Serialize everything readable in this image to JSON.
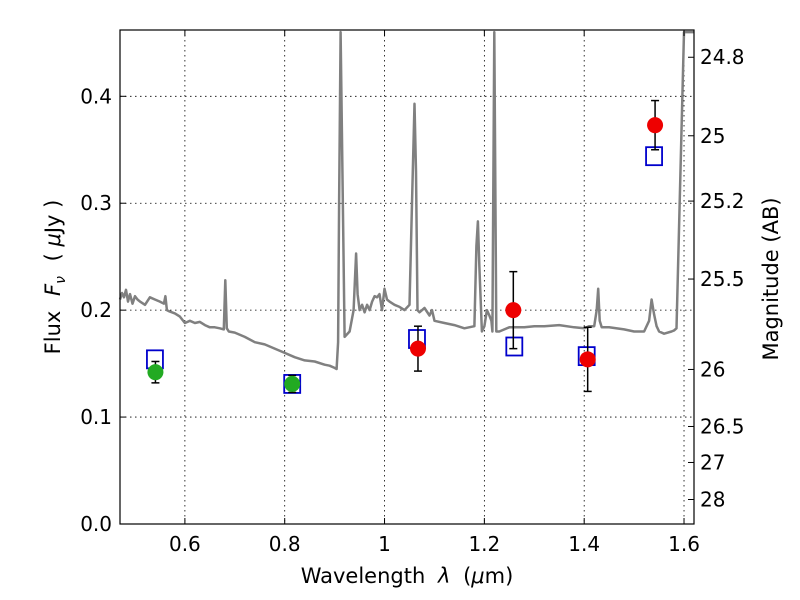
{
  "chart_data": {
    "type": "scatter",
    "title": "",
    "xlabel": {
      "prefix": "Wavelength",
      "symbol": "λ",
      "unit_open": "(",
      "unit_mu": "μ",
      "unit_rest": "m)"
    },
    "ylabel": {
      "prefix": "Flux",
      "symbol": "F",
      "sub": "ν",
      "unit_open": "( ",
      "unit_mu": "μ",
      "unit_rest": "Jy )"
    },
    "y2label": "Magnitude (AB)",
    "xlim": [
      0.47,
      1.62
    ],
    "ylim": [
      0.0,
      0.462
    ],
    "xticks": [
      {
        "v": 0.6,
        "label": "0.6"
      },
      {
        "v": 0.8,
        "label": "0.8"
      },
      {
        "v": 1.0,
        "label": "1"
      },
      {
        "v": 1.2,
        "label": "1.2"
      },
      {
        "v": 1.4,
        "label": "1.4"
      },
      {
        "v": 1.6,
        "label": "1.6"
      }
    ],
    "yticks": [
      {
        "v": 0.0,
        "label": "0.0"
      },
      {
        "v": 0.1,
        "label": "0.1"
      },
      {
        "v": 0.2,
        "label": "0.2"
      },
      {
        "v": 0.3,
        "label": "0.3"
      },
      {
        "v": 0.4,
        "label": "0.4"
      }
    ],
    "y2ticks": [
      {
        "mag": 24.8,
        "label": "24.8"
      },
      {
        "mag": 25.0,
        "label": "25"
      },
      {
        "mag": 25.2,
        "label": "25.2"
      },
      {
        "mag": 25.5,
        "label": "25.5"
      },
      {
        "mag": 26.0,
        "label": "26"
      },
      {
        "mag": 26.5,
        "label": "26.5"
      },
      {
        "mag": 27.0,
        "label": "27"
      },
      {
        "mag": 28.0,
        "label": "28"
      }
    ],
    "colors": {
      "model": "#808080",
      "model_points": "#0000cc",
      "obs_red": "#ee0000",
      "obs_green": "#22aa22",
      "errorbar": "#000000"
    },
    "series": [
      {
        "name": "model spectrum",
        "kind": "line",
        "x": [
          0.47,
          0.474,
          0.478,
          0.482,
          0.486,
          0.49,
          0.495,
          0.5,
          0.505,
          0.51,
          0.52,
          0.53,
          0.54,
          0.55,
          0.558,
          0.561,
          0.564,
          0.568,
          0.58,
          0.59,
          0.6,
          0.61,
          0.62,
          0.63,
          0.64,
          0.65,
          0.66,
          0.67,
          0.678,
          0.681,
          0.684,
          0.688,
          0.7,
          0.72,
          0.74,
          0.76,
          0.78,
          0.8,
          0.82,
          0.84,
          0.86,
          0.88,
          0.89,
          0.9,
          0.904,
          0.907,
          0.909,
          0.912,
          0.92,
          0.93,
          0.938,
          0.943,
          0.946,
          0.95,
          0.955,
          0.96,
          0.965,
          0.97,
          0.975,
          0.98,
          0.985,
          0.99,
          0.995,
          1.0,
          1.005,
          1.01,
          1.02,
          1.03,
          1.04,
          1.05,
          1.055,
          1.06,
          1.063,
          1.066,
          1.07,
          1.08,
          1.09,
          1.095,
          1.1,
          1.12,
          1.14,
          1.16,
          1.18,
          1.184,
          1.187,
          1.19,
          1.195,
          1.2,
          1.205,
          1.21,
          1.214,
          1.216,
          1.22,
          1.224,
          1.23,
          1.25,
          1.28,
          1.3,
          1.32,
          1.35,
          1.38,
          1.4,
          1.41,
          1.42,
          1.425,
          1.428,
          1.431,
          1.435,
          1.45,
          1.48,
          1.5,
          1.52,
          1.53,
          1.535,
          1.54,
          1.545,
          1.55,
          1.56,
          1.575,
          1.58,
          1.585,
          1.6,
          1.62
        ],
        "y": [
          0.21,
          0.216,
          0.212,
          0.219,
          0.208,
          0.215,
          0.206,
          0.213,
          0.21,
          0.208,
          0.205,
          0.212,
          0.21,
          0.208,
          0.206,
          0.213,
          0.2,
          0.199,
          0.197,
          0.194,
          0.188,
          0.19,
          0.188,
          0.189,
          0.186,
          0.184,
          0.184,
          0.183,
          0.182,
          0.228,
          0.183,
          0.18,
          0.179,
          0.175,
          0.17,
          0.168,
          0.164,
          0.16,
          0.156,
          0.153,
          0.152,
          0.149,
          0.148,
          0.146,
          0.145,
          0.17,
          0.3,
          0.46,
          0.175,
          0.18,
          0.2,
          0.253,
          0.215,
          0.2,
          0.205,
          0.198,
          0.205,
          0.2,
          0.208,
          0.213,
          0.212,
          0.215,
          0.2,
          0.22,
          0.21,
          0.208,
          0.205,
          0.203,
          0.2,
          0.205,
          0.3,
          0.393,
          0.33,
          0.2,
          0.198,
          0.202,
          0.195,
          0.2,
          0.19,
          0.188,
          0.186,
          0.183,
          0.185,
          0.26,
          0.283,
          0.24,
          0.18,
          0.185,
          0.2,
          0.195,
          0.19,
          0.18,
          0.46,
          0.18,
          0.18,
          0.184,
          0.184,
          0.185,
          0.185,
          0.186,
          0.184,
          0.183,
          0.185,
          0.185,
          0.2,
          0.22,
          0.19,
          0.184,
          0.184,
          0.182,
          0.18,
          0.18,
          0.19,
          0.21,
          0.196,
          0.185,
          0.18,
          0.178,
          0.18,
          0.181,
          0.183,
          0.46,
          0.46
        ]
      },
      {
        "name": "model photometry",
        "kind": "open-square",
        "x": [
          0.54,
          0.815,
          1.065,
          1.26,
          1.405,
          1.54
        ],
        "y": [
          0.154,
          0.131,
          0.173,
          0.166,
          0.157,
          0.344
        ]
      },
      {
        "name": "observed (red)",
        "kind": "filled-circle",
        "x": [
          1.067,
          1.258,
          1.407,
          1.542
        ],
        "y": [
          0.164,
          0.2,
          0.154,
          0.373
        ],
        "yerr": [
          0.021,
          0.036,
          0.03,
          0.023
        ]
      },
      {
        "name": "observed (green)",
        "kind": "filled-circle",
        "x": [
          0.541,
          0.815
        ],
        "y": [
          0.142,
          0.131
        ],
        "yerr": [
          0.01,
          0.008
        ]
      }
    ]
  }
}
